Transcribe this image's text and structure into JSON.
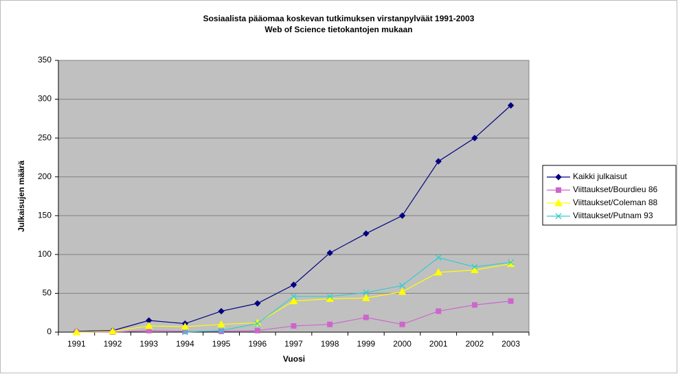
{
  "chart_data": {
    "type": "line",
    "title": [
      "Sosiaalista pääomaa koskevan tutkimuksen virstanpylväät 1991-2003",
      "Web of Science tietokantojen mukaan"
    ],
    "xlabel": "Vuosi",
    "ylabel": "Julkaisujen määrä",
    "categories": [
      "1991",
      "1992",
      "1993",
      "1994",
      "1995",
      "1996",
      "1997",
      "1998",
      "1999",
      "2000",
      "2001",
      "2002",
      "2003"
    ],
    "series": [
      {
        "name": "Kaikki julkaisut",
        "color": "#000080",
        "marker": "diamond",
        "values": [
          1,
          2,
          15,
          11,
          27,
          37,
          61,
          102,
          127,
          150,
          220,
          250,
          292
        ]
      },
      {
        "name": "Viittaukset/Bourdieu 86",
        "color": "#cc66cc",
        "marker": "square",
        "values": [
          0,
          0,
          2,
          1,
          1,
          2,
          8,
          10,
          19,
          10,
          27,
          35,
          40
        ]
      },
      {
        "name": "Viittaukset/Coleman 88",
        "color": "#ffff00",
        "marker": "triangle",
        "values": [
          0,
          1,
          8,
          7,
          10,
          12,
          40,
          43,
          44,
          52,
          77,
          80,
          88
        ]
      },
      {
        "name": "Viittaukset/Putnam 93",
        "color": "#33cccc",
        "marker": "x",
        "values": [
          null,
          null,
          null,
          0,
          2,
          11,
          46,
          46,
          51,
          60,
          96,
          84,
          90
        ]
      }
    ],
    "ylim": [
      0,
      350
    ],
    "yticks": [
      0,
      50,
      100,
      150,
      200,
      250,
      300,
      350
    ],
    "grid": true,
    "legend": "right"
  }
}
